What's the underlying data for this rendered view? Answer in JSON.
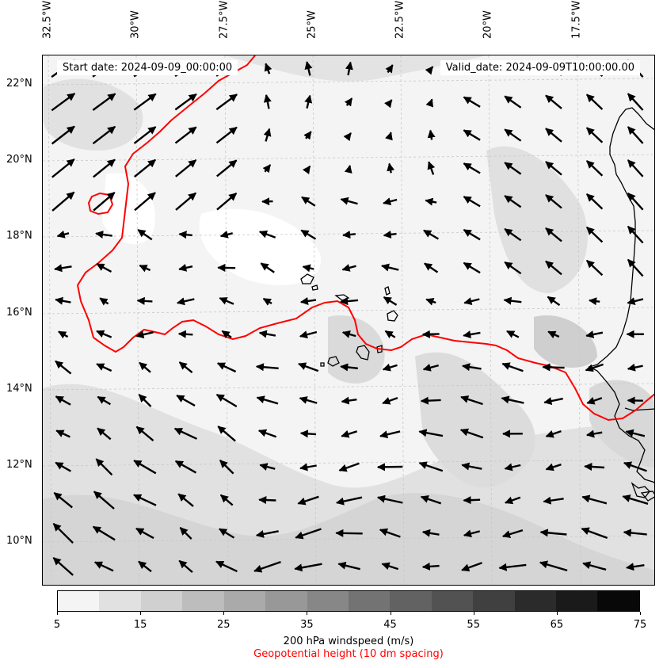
{
  "header": {
    "start_date": "Start date: 2024-09-09_00:00:00",
    "valid_date": "Valid_date: 2024-09-09T10:00:00.00"
  },
  "map": {
    "lon_range": [
      -32.5,
      -15.0
    ],
    "lat_range": [
      8.8,
      22.8
    ],
    "lon_labels": [
      "32.5°W",
      "30°W",
      "27.5°W",
      "25°W",
      "22.5°W",
      "20°W",
      "17.5°W"
    ],
    "lat_labels": [
      "22°N",
      "20°N",
      "18°N",
      "16°N",
      "14°N",
      "12°N",
      "10°N"
    ],
    "contour_color": "#ff0000",
    "arrow_color": "#000000",
    "coastline_color": "#000000"
  },
  "colorbar": {
    "title": "200 hPa windspeed (m/s)",
    "subtitle": "Geopotential height (10 dm spacing)",
    "tick_labels": [
      "5",
      "15",
      "25",
      "35",
      "45",
      "55",
      "65",
      "75"
    ],
    "colors": [
      "#f4f4f4",
      "#e1e1e1",
      "#d0d0d0",
      "#bdbdbd",
      "#aaaaaa",
      "#989898",
      "#878787",
      "#737373",
      "#626262",
      "#525252",
      "#404040",
      "#2b2b2b",
      "#1a1a1a",
      "#080808"
    ]
  }
}
